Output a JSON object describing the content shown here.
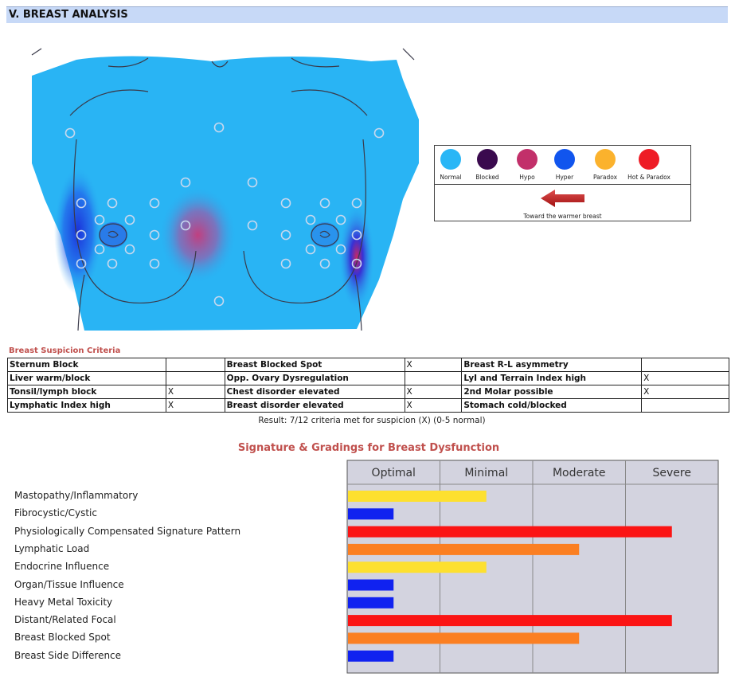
{
  "section": {
    "title": "V. BREAST ANALYSIS"
  },
  "legend": {
    "items": [
      {
        "label": "Normal",
        "color": "#29b6f6"
      },
      {
        "label": "Blocked",
        "color": "#3a0a4e"
      },
      {
        "label": "Hypo",
        "color": "#c2306a"
      },
      {
        "label": "Hyper",
        "color": "#1155ee"
      },
      {
        "label": "Paradox",
        "color": "#fbb22d"
      },
      {
        "label": "Hot & Paradox",
        "color": "#ee1c25"
      }
    ],
    "arrow_caption": "Toward the warmer breast"
  },
  "criteria": {
    "title": "Breast Suspicion Criteria",
    "rows": [
      [
        {
          "label": "Sternum Block",
          "mark": ""
        },
        {
          "label": "Breast Blocked Spot",
          "mark": "X"
        },
        {
          "label": "Breast R-L asymmetry",
          "mark": ""
        }
      ],
      [
        {
          "label": "Liver warm/block",
          "mark": ""
        },
        {
          "label": "Opp. Ovary Dysregulation",
          "mark": ""
        },
        {
          "label": "LyI and Terrain Index high",
          "mark": "X"
        }
      ],
      [
        {
          "label": "Tonsil/lymph block",
          "mark": "X"
        },
        {
          "label": "Chest disorder elevated",
          "mark": "X"
        },
        {
          "label": "2nd Molar possible",
          "mark": "X"
        }
      ],
      [
        {
          "label": "Lymphatic Index high",
          "mark": "X"
        },
        {
          "label": "Breast disorder elevated",
          "mark": "X"
        },
        {
          "label": "Stomach cold/blocked",
          "mark": ""
        }
      ]
    ],
    "result": "Result: 7/12 criteria met for suspicion (X) (0-5 normal)"
  },
  "chart_data": {
    "type": "bar",
    "title": "Signature & Gradings for Breast Dysfunction",
    "column_headers": [
      "Optimal",
      "Minimal",
      "Moderate",
      "Severe"
    ],
    "xlim": [
      0,
      4
    ],
    "categories": [
      "Mastopathy/Inflammatory",
      "Fibrocystic/Cystic",
      "Physiologically Compensated Signature Pattern",
      "Lymphatic Load",
      "Endocrine Influence",
      "Organ/Tissue Influence",
      "Heavy Metal Toxicity",
      "Distant/Related Focal",
      "Breast Blocked Spot",
      "Breast Side Difference"
    ],
    "values": [
      1.5,
      0.5,
      3.5,
      2.5,
      1.5,
      0.5,
      0.5,
      3.5,
      2.5,
      0.5
    ],
    "colors": [
      "#fde02f",
      "#1022f0",
      "#fb1414",
      "#fb7f22",
      "#fde02f",
      "#1022f0",
      "#1022f0",
      "#fb1414",
      "#fb7f22",
      "#1022f0"
    ]
  }
}
